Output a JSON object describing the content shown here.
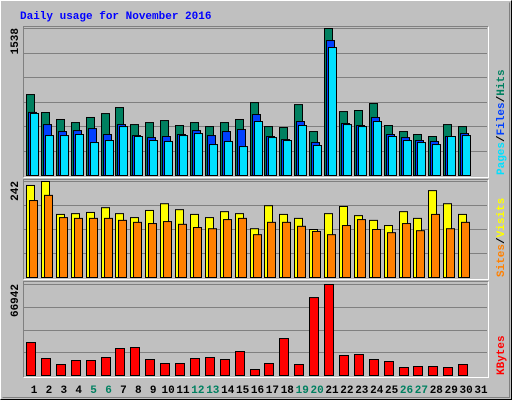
{
  "chart_data": [
    {
      "type": "bar",
      "title": "Daily usage for November 2016",
      "categories": [
        "1",
        "2",
        "3",
        "4",
        "5",
        "6",
        "7",
        "8",
        "9",
        "10",
        "11",
        "12",
        "13",
        "14",
        "15",
        "16",
        "17",
        "18",
        "19",
        "20",
        "21",
        "22",
        "23",
        "24",
        "25",
        "26",
        "27",
        "28",
        "29",
        "30",
        "31"
      ],
      "highlighted": [
        4,
        5,
        11,
        12,
        18,
        19,
        25,
        26
      ],
      "highlight_color": "#008060",
      "legend_separator": "/",
      "ylim": [
        0,
        1538
      ],
      "yticks": [
        1538
      ],
      "grid": true,
      "series": [
        {
          "name": "Hits",
          "color": "#008060",
          "values": [
            847,
            659,
            586,
            554,
            607,
            648,
            711,
            533,
            554,
            575,
            523,
            554,
            512,
            554,
            586,
            763,
            512,
            502,
            742,
            460,
            1538,
            669,
            680,
            753,
            523,
            460,
            429,
            408,
            533,
            512,
            null
          ]
        },
        {
          "name": "Files",
          "color": "#0040ff",
          "values": [
            660,
            533,
            460,
            470,
            491,
            429,
            533,
            418,
            397,
            408,
            429,
            470,
            418,
            460,
            481,
            638,
            408,
            376,
            565,
            345,
            1412,
            544,
            523,
            607,
            429,
            397,
            366,
            356,
            408,
            439,
            null
          ]
        },
        {
          "name": "Pages",
          "color": "#00e0ff",
          "values": [
            649,
            418,
            418,
            429,
            345,
            366,
            512,
            408,
            366,
            356,
            418,
            439,
            324,
            356,
            303,
            565,
            397,
            366,
            523,
            314,
            1339,
            533,
            512,
            565,
            408,
            366,
            345,
            324,
            408,
            418,
            null
          ]
        }
      ]
    },
    {
      "type": "bar",
      "ylim": [
        0,
        242
      ],
      "yticks": [
        242
      ],
      "grid": true,
      "series": [
        {
          "name": "Visits",
          "color": "#ffff00",
          "values": [
            232,
            242,
            159,
            161,
            164,
            176,
            161,
            151,
            169,
            186,
            171,
            159,
            151,
            166,
            161,
            123,
            181,
            159,
            149,
            121,
            161,
            179,
            156,
            144,
            131,
            166,
            149,
            219,
            186,
            159,
            null
          ]
        },
        {
          "name": "Sites",
          "color": "#ff8000",
          "values": [
            194,
            207,
            151,
            149,
            149,
            149,
            144,
            139,
            136,
            141,
            134,
            126,
            123,
            146,
            149,
            108,
            139,
            139,
            129,
            116,
            108,
            131,
            146,
            121,
            113,
            136,
            118,
            159,
            123,
            139,
            null
          ]
        }
      ]
    },
    {
      "type": "bar",
      "ylim": [
        0,
        66942
      ],
      "yticks": [
        66942
      ],
      "grid": true,
      "series": [
        {
          "name": "KBytes",
          "color": "#ff0000",
          "values": [
            24260,
            12500,
            8090,
            11030,
            11030,
            13240,
            19860,
            20590,
            11770,
            8830,
            8830,
            12500,
            13240,
            11770,
            17650,
            4410,
            8830,
            27200,
            8090,
            57330,
            66942,
            14710,
            15440,
            11770,
            10300,
            5880,
            6620,
            6620,
            5880,
            8090,
            null
          ]
        }
      ]
    }
  ]
}
